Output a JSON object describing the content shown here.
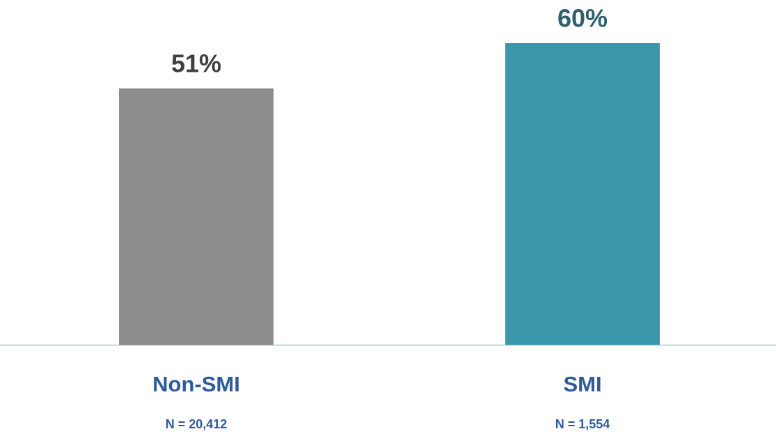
{
  "chart_data": {
    "type": "bar",
    "categories": [
      "Non-SMI",
      "SMI"
    ],
    "sample_sizes": [
      "N = 20,412",
      "N = 1,554"
    ],
    "values": [
      51,
      60
    ],
    "value_labels": [
      "51%",
      "60%"
    ],
    "colors": [
      "#8c8c8c",
      "#3a97aa"
    ],
    "value_label_colors": [
      "#3f3f3f",
      "#2d5f6d"
    ],
    "category_color": "#2e5b9a",
    "ylim": [
      0,
      60
    ]
  }
}
